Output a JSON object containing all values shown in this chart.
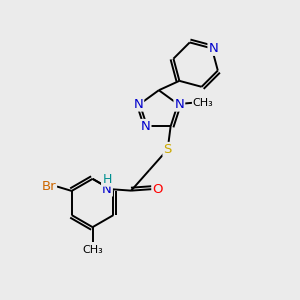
{
  "background_color": "#ebebeb",
  "atom_colors": {
    "C": "#000000",
    "N": "#0000cc",
    "O": "#ff0000",
    "S": "#ccaa00",
    "Br": "#cc6600",
    "H": "#009090"
  },
  "bond_color": "#000000",
  "bond_lw": 1.4,
  "font_size": 9.5
}
